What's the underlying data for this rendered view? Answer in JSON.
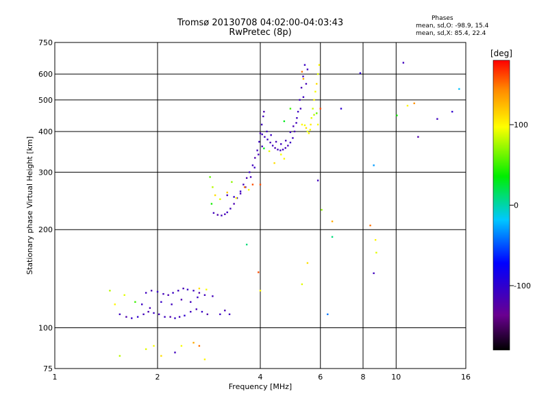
{
  "header": {
    "title": "Tromsø 20130708 04:02:00-04:03:43",
    "subtitle": "RwPretec (8p)"
  },
  "phases_box": {
    "heading": "Phases",
    "line_o": "mean, sd,O: -98.9, 15.4",
    "line_x": "mean, sd,X:  85.4, 22.4"
  },
  "colorbar": {
    "label": "[deg]",
    "ticks": [
      "100",
      "0",
      "-100"
    ],
    "tick_values": [
      100,
      0,
      -100
    ],
    "range": [
      -180,
      180
    ]
  },
  "chart_data": {
    "type": "scatter",
    "title": "Tromsø 20130708 04:02:00-04:03:43",
    "subtitle": "RwPretec (8p)",
    "xlabel": "Frequency [MHz]",
    "ylabel": "Stationary phase Virtual Height [km]",
    "x_scale": "log",
    "y_scale": "log",
    "xlim": [
      1,
      16
    ],
    "ylim": [
      75,
      750
    ],
    "x_ticks": [
      1,
      2,
      4,
      6,
      8,
      10,
      16
    ],
    "x_tick_labels": [
      "1",
      "2",
      "4",
      "6",
      "8",
      "10",
      "16"
    ],
    "y_ticks": [
      75,
      100,
      200,
      300,
      400,
      500,
      600,
      750
    ],
    "y_tick_labels": [
      "75",
      "100",
      "200",
      "300",
      "400",
      "500",
      "600",
      "750"
    ],
    "grid": true,
    "color_encodes": "phase [deg]",
    "points": [
      [
        1.55,
        110,
        -110
      ],
      [
        1.62,
        108,
        -120
      ],
      [
        1.68,
        107,
        -105
      ],
      [
        1.75,
        108,
        -100
      ],
      [
        1.82,
        110,
        -112
      ],
      [
        1.88,
        112,
        -118
      ],
      [
        1.95,
        111,
        -108
      ],
      [
        2.02,
        110,
        -115
      ],
      [
        2.1,
        108,
        -110
      ],
      [
        2.18,
        108,
        -120
      ],
      [
        2.25,
        107,
        -105
      ],
      [
        2.32,
        108,
        -112
      ],
      [
        2.4,
        109,
        -100
      ],
      [
        2.5,
        112,
        -110
      ],
      [
        2.6,
        114,
        -115
      ],
      [
        2.7,
        112,
        -105
      ],
      [
        2.8,
        110,
        -120
      ],
      [
        1.85,
        128,
        -110
      ],
      [
        1.92,
        130,
        -115
      ],
      [
        2.0,
        129,
        -105
      ],
      [
        2.08,
        127,
        -112
      ],
      [
        2.15,
        126,
        -118
      ],
      [
        2.22,
        128,
        -108
      ],
      [
        2.3,
        130,
        -110
      ],
      [
        2.38,
        132,
        -115
      ],
      [
        2.45,
        131,
        -105
      ],
      [
        2.55,
        130,
        -110
      ],
      [
        2.65,
        128,
        -120
      ],
      [
        2.75,
        126,
        -112
      ],
      [
        1.8,
        118,
        -108
      ],
      [
        1.9,
        115,
        -115
      ],
      [
        2.05,
        120,
        -105
      ],
      [
        2.2,
        118,
        -110
      ],
      [
        2.35,
        122,
        -118
      ],
      [
        2.5,
        120,
        -112
      ],
      [
        2.62,
        124,
        -106
      ],
      [
        3.05,
        110,
        -108
      ],
      [
        3.15,
        113,
        -115
      ],
      [
        3.25,
        110,
        -110
      ],
      [
        2.9,
        125,
        -112
      ],
      [
        1.45,
        130,
        80
      ],
      [
        1.6,
        126,
        90
      ],
      [
        1.72,
        120,
        50
      ],
      [
        1.5,
        118,
        100
      ],
      [
        2.65,
        132,
        110
      ],
      [
        2.78,
        131,
        95
      ],
      [
        1.55,
        82,
        80
      ],
      [
        1.85,
        86,
        90
      ],
      [
        1.95,
        88,
        95
      ],
      [
        2.05,
        82,
        110
      ],
      [
        2.25,
        84,
        -110
      ],
      [
        2.35,
        88,
        95
      ],
      [
        2.55,
        90,
        130
      ],
      [
        2.65,
        88,
        150
      ],
      [
        2.75,
        80,
        100
      ],
      [
        2.92,
        225,
        -112
      ],
      [
        3.0,
        222,
        -120
      ],
      [
        3.08,
        221,
        -110
      ],
      [
        3.15,
        223,
        -115
      ],
      [
        3.2,
        226,
        -108
      ],
      [
        3.27,
        232,
        -112
      ],
      [
        3.35,
        240,
        -118
      ],
      [
        3.42,
        250,
        -110
      ],
      [
        3.5,
        262,
        -105
      ],
      [
        3.57,
        275,
        -112
      ],
      [
        3.65,
        288,
        -115
      ],
      [
        3.72,
        300,
        -108
      ],
      [
        3.8,
        315,
        -110
      ],
      [
        3.86,
        332,
        -120
      ],
      [
        3.92,
        350,
        -112
      ],
      [
        3.97,
        372,
        -108
      ],
      [
        4.0,
        395,
        -115
      ],
      [
        4.04,
        420,
        -110
      ],
      [
        4.08,
        445,
        -112
      ],
      [
        4.1,
        460,
        -118
      ],
      [
        4.05,
        392,
        -110
      ],
      [
        4.12,
        385,
        -112
      ],
      [
        4.2,
        378,
        -108
      ],
      [
        4.28,
        370,
        -115
      ],
      [
        4.35,
        362,
        -110
      ],
      [
        4.42,
        356,
        -118
      ],
      [
        4.5,
        352,
        -112
      ],
      [
        4.58,
        350,
        -108
      ],
      [
        4.66,
        352,
        -110
      ],
      [
        4.74,
        356,
        -115
      ],
      [
        4.82,
        362,
        -112
      ],
      [
        4.9,
        370,
        -108
      ],
      [
        4.98,
        382,
        -110
      ],
      [
        5.04,
        400,
        -115
      ],
      [
        5.1,
        425,
        -112
      ],
      [
        5.16,
        460,
        -108
      ],
      [
        5.22,
        500,
        -110
      ],
      [
        5.28,
        545,
        -115
      ],
      [
        5.34,
        590,
        -112
      ],
      [
        5.4,
        640,
        -108
      ],
      [
        3.2,
        255,
        -112
      ],
      [
        3.35,
        252,
        -108
      ],
      [
        3.5,
        258,
        -115
      ],
      [
        3.62,
        270,
        -110
      ],
      [
        3.75,
        290,
        -112
      ],
      [
        3.85,
        310,
        -108
      ],
      [
        3.95,
        340,
        -115
      ],
      [
        4.05,
        360,
        -110
      ],
      [
        4.18,
        400,
        -112
      ],
      [
        4.3,
        390,
        -108
      ],
      [
        4.45,
        372,
        -115
      ],
      [
        4.6,
        366,
        -110
      ],
      [
        4.75,
        375,
        -112
      ],
      [
        4.9,
        398,
        -108
      ],
      [
        5.0,
        415,
        -115
      ],
      [
        5.12,
        440,
        -110
      ],
      [
        5.25,
        470,
        -112
      ],
      [
        5.35,
        510,
        -108
      ],
      [
        5.45,
        560,
        -115
      ],
      [
        5.5,
        620,
        -110
      ],
      [
        2.85,
        290,
        60
      ],
      [
        2.9,
        270,
        80
      ],
      [
        2.95,
        255,
        110
      ],
      [
        3.05,
        248,
        90
      ],
      [
        3.2,
        260,
        120
      ],
      [
        3.3,
        280,
        70
      ],
      [
        3.4,
        250,
        100
      ],
      [
        2.88,
        240,
        40
      ],
      [
        3.6,
        270,
        150
      ],
      [
        3.7,
        265,
        95
      ],
      [
        3.8,
        275,
        160
      ],
      [
        4.1,
        355,
        30
      ],
      [
        4.25,
        348,
        90
      ],
      [
        4.4,
        320,
        110
      ],
      [
        4.6,
        340,
        95
      ],
      [
        4.7,
        330,
        100
      ],
      [
        5.3,
        420,
        100
      ],
      [
        5.4,
        418,
        95
      ],
      [
        5.45,
        410,
        110
      ],
      [
        5.5,
        400,
        90
      ],
      [
        5.55,
        395,
        100
      ],
      [
        5.6,
        405,
        95
      ],
      [
        5.62,
        420,
        105
      ],
      [
        5.65,
        440,
        90
      ],
      [
        5.7,
        470,
        85
      ],
      [
        5.75,
        500,
        100
      ],
      [
        5.8,
        530,
        95
      ],
      [
        5.85,
        560,
        110
      ],
      [
        5.9,
        600,
        90
      ],
      [
        5.95,
        640,
        100
      ],
      [
        5.75,
        450,
        80
      ],
      [
        5.85,
        455,
        60
      ],
      [
        5.9,
        420,
        95
      ],
      [
        4.9,
        470,
        50
      ],
      [
        4.7,
        430,
        30
      ],
      [
        5.3,
        610,
        150
      ],
      [
        5.35,
        580,
        130
      ],
      [
        6.0,
        470,
        160
      ],
      [
        4.0,
        275,
        160
      ],
      [
        3.65,
        180,
        10
      ],
      [
        3.95,
        148,
        160
      ],
      [
        4.0,
        130,
        100
      ],
      [
        5.3,
        136,
        90
      ],
      [
        5.5,
        158,
        110
      ],
      [
        5.9,
        283,
        -110
      ],
      [
        6.05,
        230,
        70
      ],
      [
        6.3,
        110,
        -40
      ],
      [
        6.5,
        190,
        10
      ],
      [
        6.5,
        212,
        130
      ],
      [
        6.9,
        470,
        -100
      ],
      [
        7.85,
        604,
        -100
      ],
      [
        8.4,
        206,
        150
      ],
      [
        8.6,
        315,
        -30
      ],
      [
        8.7,
        186,
        100
      ],
      [
        8.75,
        170,
        90
      ],
      [
        8.6,
        147,
        -110
      ],
      [
        10.05,
        448,
        40
      ],
      [
        10.5,
        650,
        -110
      ],
      [
        10.8,
        480,
        100
      ],
      [
        11.3,
        488,
        140
      ],
      [
        11.6,
        385,
        -120
      ],
      [
        13.2,
        437,
        -110
      ],
      [
        14.6,
        460,
        -100
      ],
      [
        15.3,
        540,
        -20
      ]
    ]
  }
}
